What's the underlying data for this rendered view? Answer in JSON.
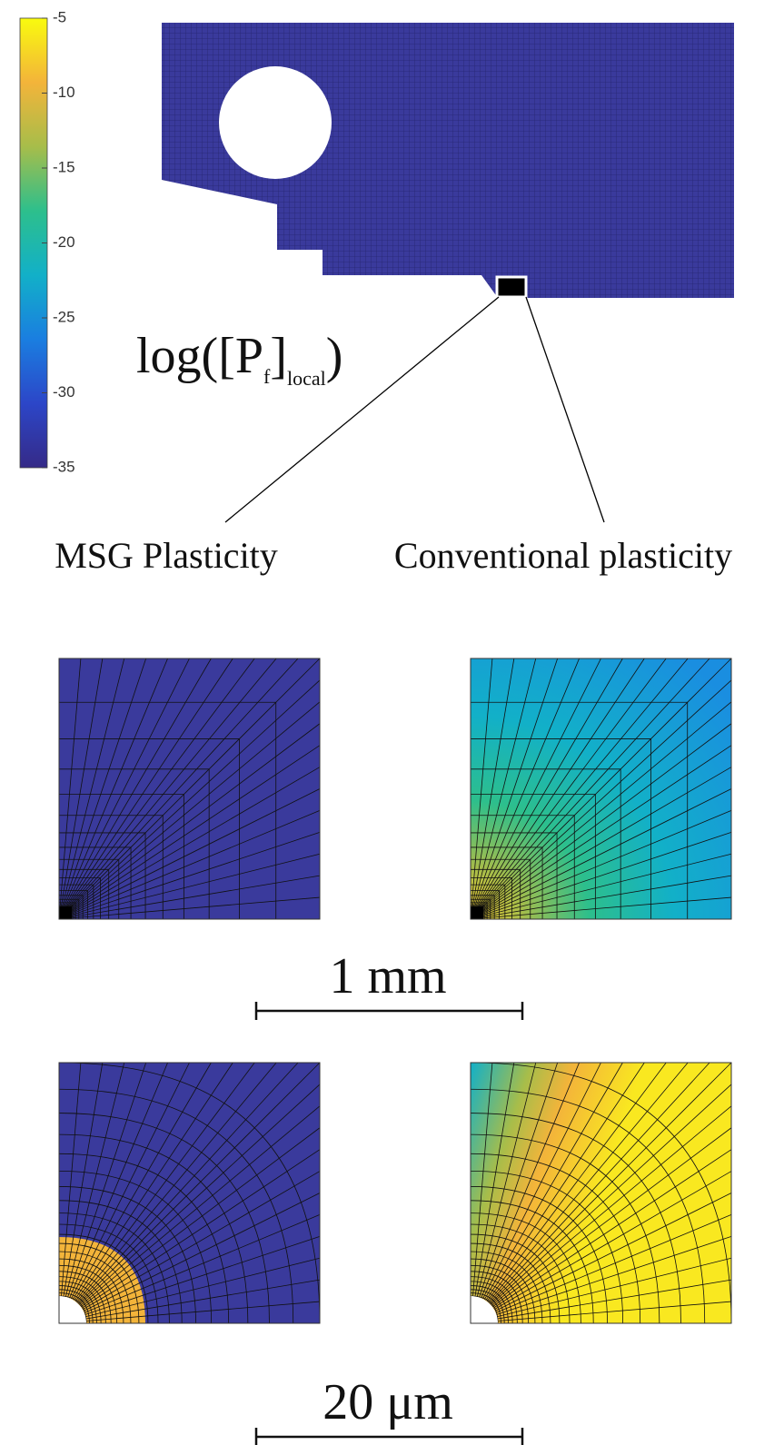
{
  "colorbar": {
    "lim": [
      -35,
      -5
    ],
    "ticks": [
      -5,
      -10,
      -15,
      -20,
      -25,
      -30,
      -35
    ],
    "colormap": [
      "#352a87",
      "#2c46c8",
      "#1a7ee0",
      "#12b0c8",
      "#2dbf8c",
      "#a7bd4a",
      "#f3b43a",
      "#f9fb0e"
    ]
  },
  "label": {
    "base": "log([P",
    "sub1": "f",
    "mid": "]",
    "sub2": "local",
    "end": ")"
  },
  "annotations": [
    "MSG Plasticity",
    "Conventional plasticity"
  ],
  "scale_bars": [
    "1 mm",
    "20 μm"
  ]
}
